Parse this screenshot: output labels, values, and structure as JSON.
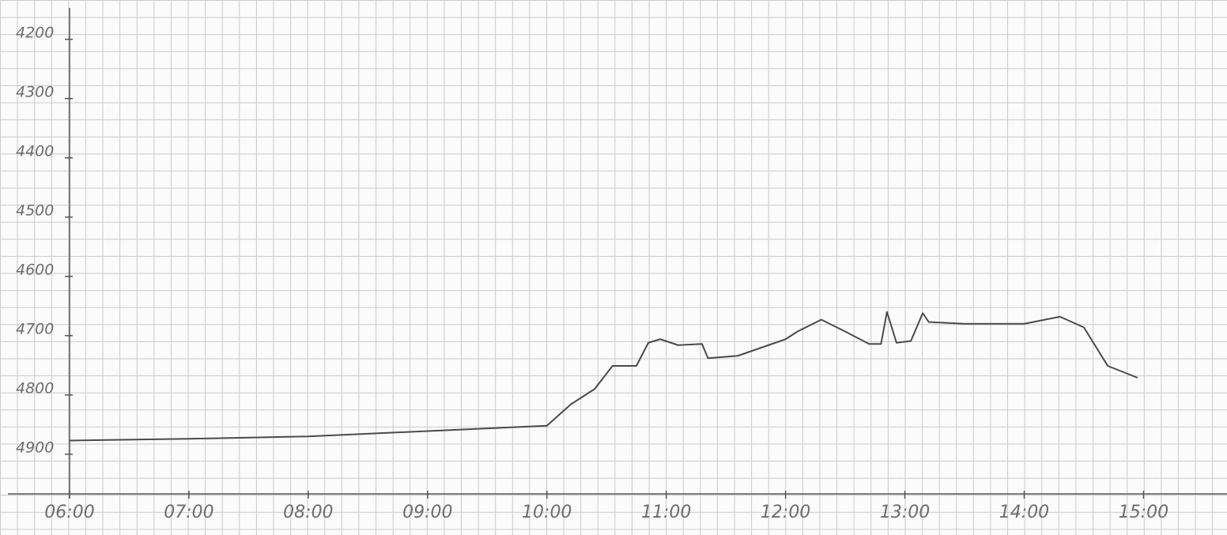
{
  "chart_data": {
    "type": "line",
    "x": [
      6.0,
      7.0,
      8.0,
      9.0,
      10.0,
      10.2,
      10.4,
      10.55,
      10.75,
      10.85,
      10.95,
      11.1,
      11.3,
      11.35,
      11.6,
      12.0,
      12.1,
      12.3,
      12.5,
      12.7,
      12.8,
      12.85,
      12.93,
      13.05,
      13.15,
      13.2,
      13.5,
      14.0,
      14.3,
      14.5,
      14.7,
      14.95
    ],
    "series": [
      {
        "color": "#4a4a4a",
        "values": [
          4877,
          4874,
          4870,
          4861,
          4852,
          4816,
          4790,
          4751,
          4751,
          4712,
          4706,
          4716,
          4714,
          4738,
          4734,
          4706,
          4693,
          4673,
          4693,
          4714,
          4714,
          4660,
          4712,
          4709,
          4662,
          4677,
          4680,
          4680,
          4668,
          4686,
          4751,
          4771
        ]
      }
    ],
    "xlim": [
      6,
      15.62
    ],
    "xticks": [
      {
        "value": 6,
        "label": "06:00"
      },
      {
        "value": 7,
        "label": "07:00"
      },
      {
        "value": 8,
        "label": "08:00"
      },
      {
        "value": 9,
        "label": "09:00"
      },
      {
        "value": 10,
        "label": "10:00"
      },
      {
        "value": 11,
        "label": "11:00"
      },
      {
        "value": 12,
        "label": "12:00"
      },
      {
        "value": 13,
        "label": "13:00"
      },
      {
        "value": 14,
        "label": "14:00"
      },
      {
        "value": 15,
        "label": "15:00"
      }
    ],
    "ylim": [
      4967,
      4147
    ],
    "yticks": [
      4200,
      4300,
      4400,
      4500,
      4600,
      4700,
      4800,
      4900
    ]
  }
}
